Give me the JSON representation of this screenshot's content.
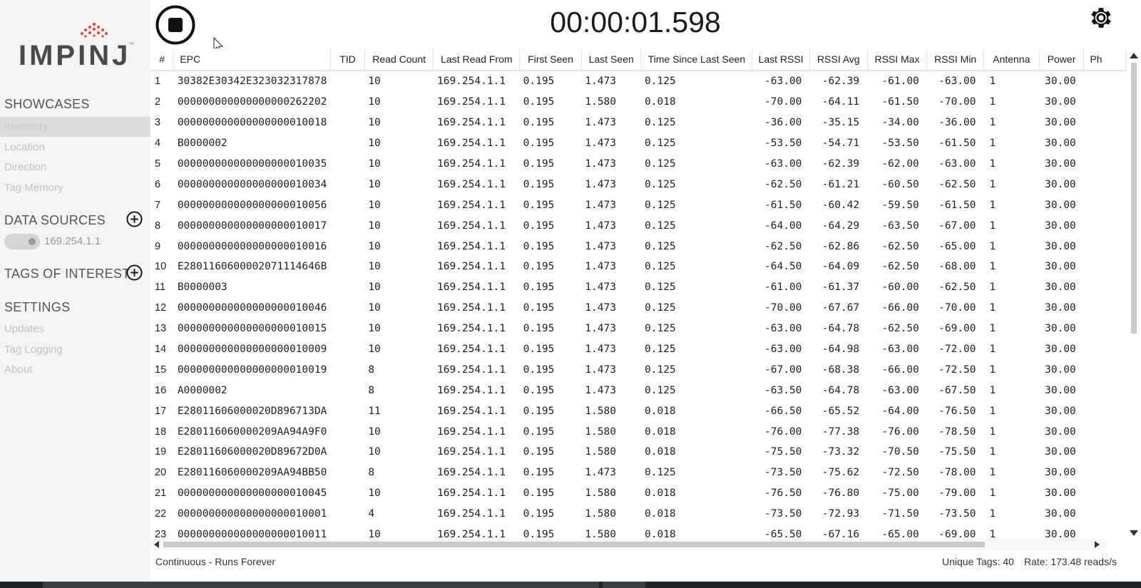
{
  "sidebar": {
    "logo_text": "IMPINJ",
    "logo_tm": "™",
    "sections": [
      {
        "title": "SHOWCASES",
        "items": [
          "Inventory",
          "Location",
          "Direction",
          "Tag Memory"
        ]
      },
      {
        "title": "DATA SOURCES"
      },
      {
        "title": "TAGS OF INTEREST"
      },
      {
        "title": "SETTINGS",
        "items": [
          "Updates",
          "Tag Logging",
          "About"
        ]
      }
    ],
    "active_item": "Inventory",
    "data_source": "169.254.1.1",
    "icons": [
      "plus-circle-icon",
      "stop-icon",
      "gear-icon"
    ]
  },
  "header": {
    "timer": "00:00:01.598"
  },
  "table": {
    "columns": [
      "#",
      "EPC",
      "TID",
      "Read Count",
      "Last Read From",
      "First Seen",
      "Last Seen",
      "Time Since Last Seen",
      "Last RSSI",
      "RSSI Avg",
      "RSSI Max",
      "RSSI Min",
      "Antenna",
      "Power",
      "Ph"
    ],
    "rows": [
      [
        "1",
        "30382E30342E323032317878",
        "",
        "10",
        "169.254.1.1",
        "0.195",
        "1.473",
        "0.125",
        "-63.00",
        "-62.39",
        "-61.00",
        "-63.00",
        "1",
        "30.00"
      ],
      [
        "2",
        "000000000000000000262202",
        "",
        "10",
        "169.254.1.1",
        "0.195",
        "1.580",
        "0.018",
        "-70.00",
        "-64.11",
        "-61.50",
        "-70.00",
        "1",
        "30.00"
      ],
      [
        "3",
        "000000000000000000010018",
        "",
        "10",
        "169.254.1.1",
        "0.195",
        "1.473",
        "0.125",
        "-36.00",
        "-35.15",
        "-34.00",
        "-36.00",
        "1",
        "30.00"
      ],
      [
        "4",
        "B0000002",
        "",
        "10",
        "169.254.1.1",
        "0.195",
        "1.473",
        "0.125",
        "-53.50",
        "-54.71",
        "-53.50",
        "-61.50",
        "1",
        "30.00"
      ],
      [
        "5",
        "000000000000000000010035",
        "",
        "10",
        "169.254.1.1",
        "0.195",
        "1.473",
        "0.125",
        "-63.00",
        "-62.39",
        "-62.00",
        "-63.00",
        "1",
        "30.00"
      ],
      [
        "6",
        "000000000000000000010034",
        "",
        "10",
        "169.254.1.1",
        "0.195",
        "1.473",
        "0.125",
        "-62.50",
        "-61.21",
        "-60.50",
        "-62.50",
        "1",
        "30.00"
      ],
      [
        "7",
        "000000000000000000010056",
        "",
        "10",
        "169.254.1.1",
        "0.195",
        "1.473",
        "0.125",
        "-61.50",
        "-60.42",
        "-59.50",
        "-61.50",
        "1",
        "30.00"
      ],
      [
        "8",
        "000000000000000000010017",
        "",
        "10",
        "169.254.1.1",
        "0.195",
        "1.473",
        "0.125",
        "-64.00",
        "-64.29",
        "-63.50",
        "-67.00",
        "1",
        "30.00"
      ],
      [
        "9",
        "000000000000000000010016",
        "",
        "10",
        "169.254.1.1",
        "0.195",
        "1.473",
        "0.125",
        "-62.50",
        "-62.86",
        "-62.50",
        "-65.00",
        "1",
        "30.00"
      ],
      [
        "10",
        "E2801160600002071114646B",
        "",
        "10",
        "169.254.1.1",
        "0.195",
        "1.473",
        "0.125",
        "-64.50",
        "-64.09",
        "-62.50",
        "-68.00",
        "1",
        "30.00"
      ],
      [
        "11",
        "B0000003",
        "",
        "10",
        "169.254.1.1",
        "0.195",
        "1.473",
        "0.125",
        "-61.00",
        "-61.37",
        "-60.00",
        "-62.50",
        "1",
        "30.00"
      ],
      [
        "12",
        "000000000000000000010046",
        "",
        "10",
        "169.254.1.1",
        "0.195",
        "1.473",
        "0.125",
        "-70.00",
        "-67.67",
        "-66.00",
        "-70.00",
        "1",
        "30.00"
      ],
      [
        "13",
        "000000000000000000010015",
        "",
        "10",
        "169.254.1.1",
        "0.195",
        "1.473",
        "0.125",
        "-63.00",
        "-64.78",
        "-62.50",
        "-69.00",
        "1",
        "30.00"
      ],
      [
        "14",
        "000000000000000000010009",
        "",
        "10",
        "169.254.1.1",
        "0.195",
        "1.473",
        "0.125",
        "-63.00",
        "-64.98",
        "-63.00",
        "-72.00",
        "1",
        "30.00"
      ],
      [
        "15",
        "000000000000000000010019",
        "",
        "8",
        "169.254.1.1",
        "0.195",
        "1.473",
        "0.125",
        "-67.00",
        "-68.38",
        "-66.00",
        "-72.50",
        "1",
        "30.00"
      ],
      [
        "16",
        "A0000002",
        "",
        "8",
        "169.254.1.1",
        "0.195",
        "1.473",
        "0.125",
        "-63.50",
        "-64.78",
        "-63.00",
        "-67.50",
        "1",
        "30.00"
      ],
      [
        "17",
        "E28011606000020D896713DA",
        "",
        "11",
        "169.254.1.1",
        "0.195",
        "1.580",
        "0.018",
        "-66.50",
        "-65.52",
        "-64.00",
        "-76.50",
        "1",
        "30.00"
      ],
      [
        "18",
        "E280116060000209AA94A9F0",
        "",
        "10",
        "169.254.1.1",
        "0.195",
        "1.580",
        "0.018",
        "-76.00",
        "-77.38",
        "-76.00",
        "-78.50",
        "1",
        "30.00"
      ],
      [
        "19",
        "E28011606000020D89672D0A",
        "",
        "10",
        "169.254.1.1",
        "0.195",
        "1.580",
        "0.018",
        "-75.50",
        "-73.32",
        "-70.50",
        "-75.50",
        "1",
        "30.00"
      ],
      [
        "20",
        "E280116060000209AA94BB50",
        "",
        "8",
        "169.254.1.1",
        "0.195",
        "1.473",
        "0.125",
        "-73.50",
        "-75.62",
        "-72.50",
        "-78.00",
        "1",
        "30.00"
      ],
      [
        "21",
        "000000000000000000010045",
        "",
        "10",
        "169.254.1.1",
        "0.195",
        "1.580",
        "0.018",
        "-76.50",
        "-76.80",
        "-75.00",
        "-79.00",
        "1",
        "30.00"
      ],
      [
        "22",
        "000000000000000000010001",
        "",
        "4",
        "169.254.1.1",
        "0.195",
        "1.580",
        "0.018",
        "-73.50",
        "-72.93",
        "-71.50",
        "-73.50",
        "1",
        "30.00"
      ],
      [
        "23",
        "000000000000000000010011",
        "",
        "10",
        "169.254.1.1",
        "0.195",
        "1.580",
        "0.018",
        "-65.50",
        "-67.16",
        "-65.00",
        "-69.00",
        "1",
        "30.00"
      ]
    ]
  },
  "status": {
    "mode": "Continuous - Runs Forever",
    "unique_tags": "Unique Tags:  40",
    "rate": "Rate:  173.48 reads/s"
  },
  "colors": {
    "logo_red": "#e8403a",
    "logo_gray": "#4a4a4a",
    "sidebar_bg": "#f4f4f4",
    "active_bg": "#dcdcdc"
  }
}
